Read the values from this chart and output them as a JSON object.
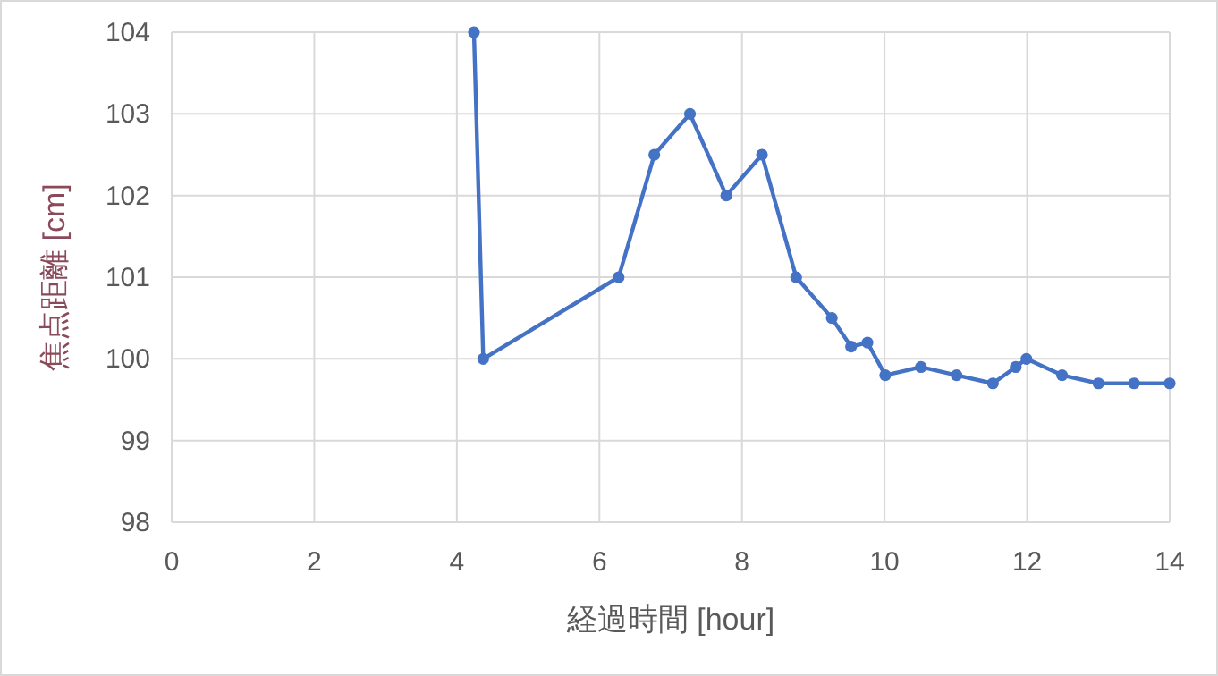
{
  "chart_data": {
    "type": "line",
    "xlabel": "経過時間 [hour]",
    "ylabel": "焦点距離 [cm]",
    "xlim": [
      0,
      14
    ],
    "ylim": [
      98,
      104
    ],
    "xticks": [
      0,
      2,
      4,
      6,
      8,
      10,
      12,
      14
    ],
    "yticks": [
      98,
      99,
      100,
      101,
      102,
      103,
      104
    ],
    "grid": true,
    "marker": "circle",
    "line_style": "solid",
    "series": [
      {
        "color": "#4472c4",
        "x": [
          4.24,
          4.37,
          6.27,
          6.77,
          7.27,
          7.78,
          8.28,
          8.76,
          9.26,
          9.53,
          9.76,
          10.01,
          10.51,
          11.01,
          11.52,
          11.84,
          11.99,
          12.49,
          13.0,
          13.5,
          14.0
        ],
        "values": [
          104,
          100,
          101,
          102.5,
          103,
          102,
          102.5,
          101,
          100.5,
          100.15,
          100.2,
          99.8,
          99.9,
          99.8,
          99.7,
          99.9,
          100,
          99.8,
          99.7,
          99.7,
          99.7
        ]
      }
    ]
  }
}
